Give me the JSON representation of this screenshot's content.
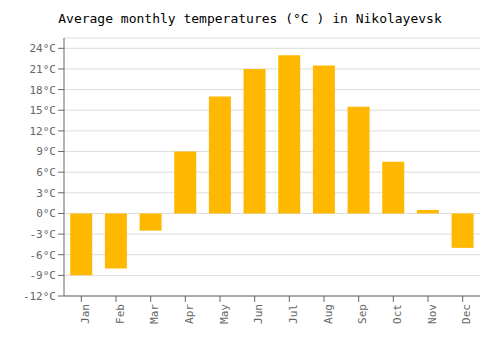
{
  "chart_data": {
    "type": "bar",
    "title": "Average monthly temperatures (°C ) in Nikolayevsk",
    "categories": [
      "Jan",
      "Feb",
      "Mar",
      "Apr",
      "May",
      "Jun",
      "Jul",
      "Aug",
      "Sep",
      "Oct",
      "Nov",
      "Dec"
    ],
    "values": [
      -9,
      -8,
      -2.5,
      9,
      17,
      21,
      23,
      21.5,
      15.5,
      7.5,
      0.5,
      -5
    ],
    "color": "#FFB800",
    "ylim": [
      -12,
      25.5
    ],
    "yticks": [
      {
        "value": -12,
        "label": "-12°C"
      },
      {
        "value": -9,
        "label": "-9°C"
      },
      {
        "value": -6,
        "label": "-6°C"
      },
      {
        "value": -3,
        "label": "-3°C"
      },
      {
        "value": 0,
        "label": "0°C"
      },
      {
        "value": 3,
        "label": "3°C"
      },
      {
        "value": 6,
        "label": "6°C"
      },
      {
        "value": 9,
        "label": "9°C"
      },
      {
        "value": 12,
        "label": "12°C"
      },
      {
        "value": 15,
        "label": "15°C"
      },
      {
        "value": 18,
        "label": "18°C"
      },
      {
        "value": 21,
        "label": "21°C"
      },
      {
        "value": 24,
        "label": "24°C"
      }
    ],
    "grid": true
  }
}
